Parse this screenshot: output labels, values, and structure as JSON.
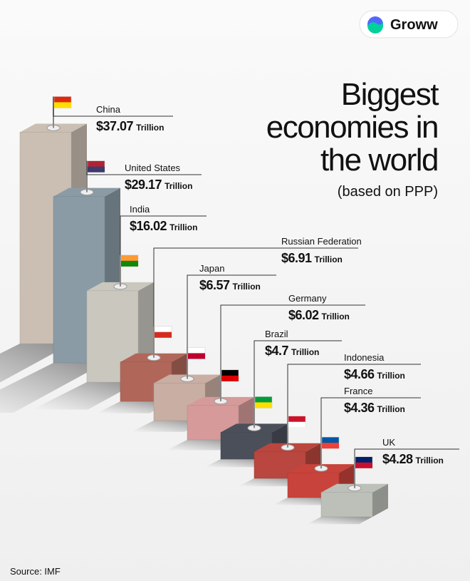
{
  "brand": "Groww",
  "chart_data": {
    "type": "bar",
    "title_lines": [
      "Biggest",
      "economies in",
      "the world"
    ],
    "subtitle": "(based on PPP)",
    "categories": [
      "China",
      "United States",
      "India",
      "Russian Federation",
      "Japan",
      "Germany",
      "Brazil",
      "Indonesia",
      "France",
      "UK"
    ],
    "values": [
      37.07,
      29.17,
      16.02,
      6.91,
      6.57,
      6.02,
      4.7,
      4.66,
      4.36,
      4.28
    ],
    "value_labels": [
      "$37.07",
      "$29.17",
      "$16.02",
      "$6.91",
      "$6.57",
      "$6.02",
      "$4.7",
      "$4.66",
      "$4.36",
      "$4.28"
    ],
    "unit": "Trillion",
    "colors": [
      "#cbbfb3",
      "#8b9ba5",
      "#c9c7be",
      "#b0675a",
      "#c9aea3",
      "#d69a9a",
      "#4b4f59",
      "#b9463f",
      "#c8433b",
      "#bcc0b8"
    ]
  },
  "source": "Source: IMF"
}
